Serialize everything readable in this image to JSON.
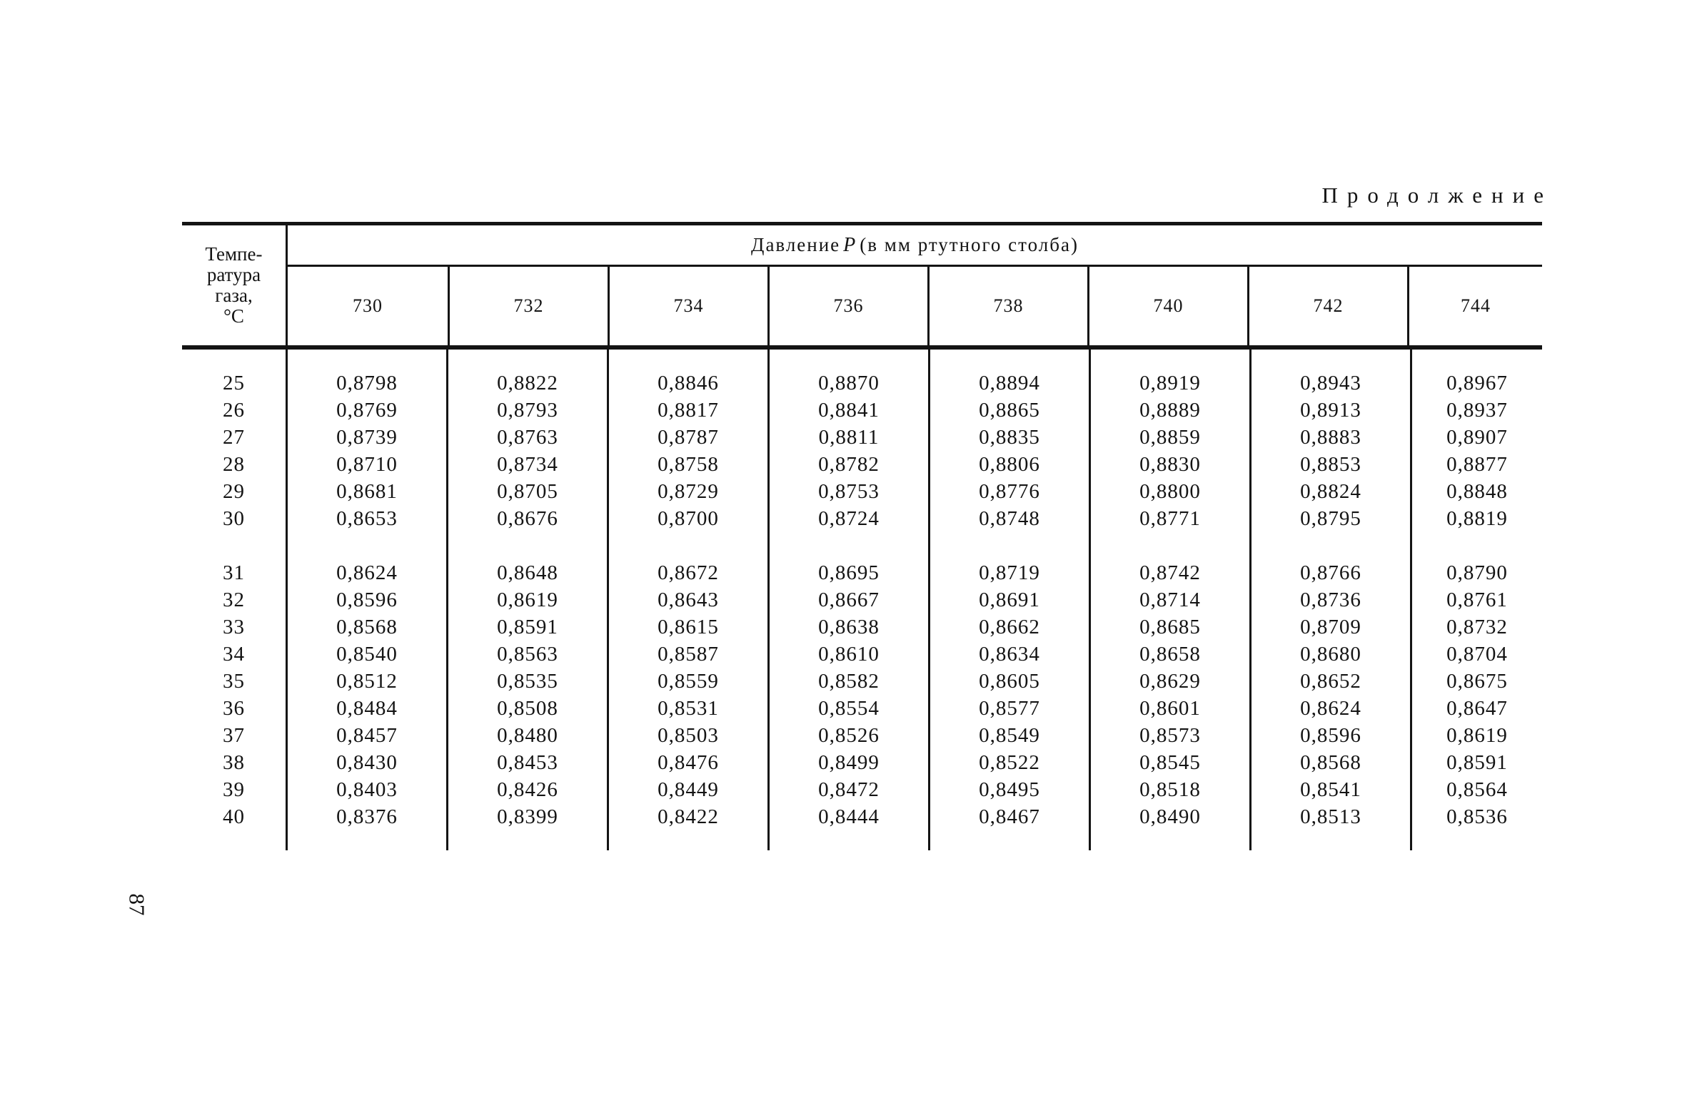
{
  "page": {
    "continuation_title": "Продолжение",
    "page_number": "87"
  },
  "table": {
    "temp_header_lines": [
      "Темпе-",
      "ратура",
      "газа,",
      "°С"
    ],
    "pressure_label": {
      "prefix": "Давление",
      "var": "P",
      "suffix": "(в мм ртутного столба)"
    },
    "pressure_columns": [
      "730",
      "732",
      "734",
      "736",
      "738",
      "740",
      "742",
      "744"
    ],
    "row_groups": [
      {
        "rows": [
          {
            "temp": "25",
            "values": [
              "0,8798",
              "0,8822",
              "0,8846",
              "0,8870",
              "0,8894",
              "0,8919",
              "0,8943",
              "0,8967"
            ]
          },
          {
            "temp": "26",
            "values": [
              "0,8769",
              "0,8793",
              "0,8817",
              "0,8841",
              "0,8865",
              "0,8889",
              "0,8913",
              "0,8937"
            ]
          },
          {
            "temp": "27",
            "values": [
              "0,8739",
              "0,8763",
              "0,8787",
              "0,8811",
              "0,8835",
              "0,8859",
              "0,8883",
              "0,8907"
            ]
          },
          {
            "temp": "28",
            "values": [
              "0,8710",
              "0,8734",
              "0,8758",
              "0,8782",
              "0,8806",
              "0,8830",
              "0,8853",
              "0,8877"
            ]
          },
          {
            "temp": "29",
            "values": [
              "0,8681",
              "0,8705",
              "0,8729",
              "0,8753",
              "0,8776",
              "0,8800",
              "0,8824",
              "0,8848"
            ]
          },
          {
            "temp": "30",
            "values": [
              "0,8653",
              "0,8676",
              "0,8700",
              "0,8724",
              "0,8748",
              "0,8771",
              "0,8795",
              "0,8819"
            ]
          }
        ]
      },
      {
        "rows": [
          {
            "temp": "31",
            "values": [
              "0,8624",
              "0,8648",
              "0,8672",
              "0,8695",
              "0,8719",
              "0,8742",
              "0,8766",
              "0,8790"
            ]
          },
          {
            "temp": "32",
            "values": [
              "0,8596",
              "0,8619",
              "0,8643",
              "0,8667",
              "0,8691",
              "0,8714",
              "0,8736",
              "0,8761"
            ]
          },
          {
            "temp": "33",
            "values": [
              "0,8568",
              "0,8591",
              "0,8615",
              "0,8638",
              "0,8662",
              "0,8685",
              "0,8709",
              "0,8732"
            ]
          },
          {
            "temp": "34",
            "values": [
              "0,8540",
              "0,8563",
              "0,8587",
              "0,8610",
              "0,8634",
              "0,8658",
              "0,8680",
              "0,8704"
            ]
          },
          {
            "temp": "35",
            "values": [
              "0,8512",
              "0,8535",
              "0,8559",
              "0,8582",
              "0,8605",
              "0,8629",
              "0,8652",
              "0,8675"
            ]
          },
          {
            "temp": "36",
            "values": [
              "0,8484",
              "0,8508",
              "0,8531",
              "0,8554",
              "0,8577",
              "0,8601",
              "0,8624",
              "0,8647"
            ]
          },
          {
            "temp": "37",
            "values": [
              "0,8457",
              "0,8480",
              "0,8503",
              "0,8526",
              "0,8549",
              "0,8573",
              "0,8596",
              "0,8619"
            ]
          },
          {
            "temp": "38",
            "values": [
              "0,8430",
              "0,8453",
              "0,8476",
              "0,8499",
              "0,8522",
              "0,8545",
              "0,8568",
              "0,8591"
            ]
          },
          {
            "temp": "39",
            "values": [
              "0,8403",
              "0,8426",
              "0,8449",
              "0,8472",
              "0,8495",
              "0,8518",
              "0,8541",
              "0,8564"
            ]
          },
          {
            "temp": "40",
            "values": [
              "0,8376",
              "0,8399",
              "0,8422",
              "0,8444",
              "0,8467",
              "0,8490",
              "0,8513",
              "0,8536"
            ]
          }
        ]
      }
    ]
  }
}
